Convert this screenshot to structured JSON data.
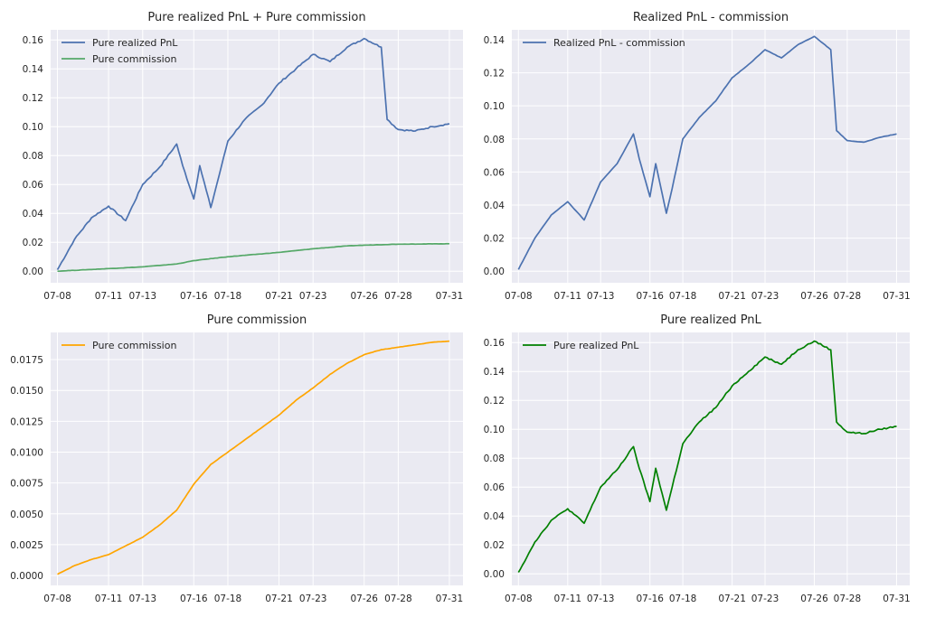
{
  "chart_data": [
    {
      "type": "line",
      "title": "Pure realized PnL + Pure commission",
      "xlabel": "",
      "ylabel": "",
      "xlim": [
        "07-08",
        "07-31"
      ],
      "ylim": [
        -0.008,
        0.167
      ],
      "x_ticks": [
        "07-08",
        "07-11",
        "07-13",
        "07-16",
        "07-18",
        "07-21",
        "07-23",
        "07-26",
        "07-28",
        "07-31"
      ],
      "y_ticks": [
        "0.00",
        "0.02",
        "0.04",
        "0.06",
        "0.08",
        "0.10",
        "0.12",
        "0.14",
        "0.16"
      ],
      "grid": true,
      "legend": "top-left",
      "series": [
        {
          "name": "Pure realized PnL",
          "color": "#4c72b0",
          "x": [
            "07-08",
            "07-09",
            "07-10",
            "07-11",
            "07-12",
            "07-13",
            "07-14",
            "07-15",
            "07-15",
            "07-16",
            "07-16",
            "07-17",
            "07-17",
            "07-18",
            "07-19",
            "07-20",
            "07-21",
            "07-22",
            "07-23",
            "07-24",
            "07-25",
            "07-26",
            "07-27",
            "07-27",
            "07-28",
            "07-29",
            "07-30",
            "07-31"
          ],
          "values": [
            0.001,
            0.022,
            0.037,
            0.045,
            0.035,
            0.06,
            0.072,
            0.088,
            0.073,
            0.05,
            0.073,
            0.044,
            0.06,
            0.09,
            0.105,
            0.115,
            0.13,
            0.14,
            0.15,
            0.145,
            0.155,
            0.161,
            0.155,
            0.105,
            0.098,
            0.097,
            0.1,
            0.102
          ]
        },
        {
          "name": "Pure commission",
          "color": "#55a868",
          "x": [
            "07-08",
            "07-11",
            "07-13",
            "07-15",
            "07-16",
            "07-18",
            "07-21",
            "07-23",
            "07-25",
            "07-26",
            "07-28",
            "07-31"
          ],
          "values": [
            0.0,
            0.0018,
            0.003,
            0.005,
            0.0073,
            0.01,
            0.013,
            0.0155,
            0.0175,
            0.018,
            0.0187,
            0.019
          ]
        }
      ]
    },
    {
      "type": "line",
      "title": "Realized PnL - commission",
      "xlabel": "",
      "ylabel": "",
      "xlim": [
        "07-08",
        "07-31"
      ],
      "ylim": [
        -0.007,
        0.146
      ],
      "x_ticks": [
        "07-08",
        "07-11",
        "07-13",
        "07-16",
        "07-18",
        "07-21",
        "07-23",
        "07-26",
        "07-28",
        "07-31"
      ],
      "y_ticks": [
        "0.00",
        "0.02",
        "0.04",
        "0.06",
        "0.08",
        "0.10",
        "0.12",
        "0.14"
      ],
      "grid": true,
      "legend": "top-left",
      "series": [
        {
          "name": "Realized PnL - commission",
          "color": "#4c72b0",
          "x": [
            "07-08",
            "07-09",
            "07-10",
            "07-11",
            "07-12",
            "07-13",
            "07-14",
            "07-15",
            "07-15",
            "07-16",
            "07-16",
            "07-17",
            "07-17",
            "07-18",
            "07-19",
            "07-20",
            "07-21",
            "07-22",
            "07-23",
            "07-24",
            "07-25",
            "07-26",
            "07-27",
            "07-27",
            "07-28",
            "07-29",
            "07-30",
            "07-31"
          ],
          "values": [
            0.001,
            0.02,
            0.034,
            0.042,
            0.031,
            0.054,
            0.065,
            0.083,
            0.068,
            0.045,
            0.065,
            0.035,
            0.05,
            0.08,
            0.093,
            0.103,
            0.117,
            0.125,
            0.134,
            0.129,
            0.137,
            0.142,
            0.134,
            0.085,
            0.079,
            0.078,
            0.081,
            0.083
          ]
        }
      ]
    },
    {
      "type": "line",
      "title": "Pure commission",
      "xlabel": "",
      "ylabel": "",
      "xlim": [
        "07-08",
        "07-31"
      ],
      "ylim": [
        -0.0008,
        0.0197
      ],
      "x_ticks": [
        "07-08",
        "07-11",
        "07-13",
        "07-16",
        "07-18",
        "07-21",
        "07-23",
        "07-26",
        "07-28",
        "07-31"
      ],
      "y_ticks": [
        "0.0000",
        "0.0025",
        "0.0050",
        "0.0075",
        "0.0100",
        "0.0125",
        "0.0150",
        "0.0175"
      ],
      "grid": true,
      "legend": "top-left",
      "series": [
        {
          "name": "Pure commission",
          "color": "#ffa500",
          "x": [
            "07-08",
            "07-09",
            "07-10",
            "07-11",
            "07-12",
            "07-13",
            "07-14",
            "07-15",
            "07-16",
            "07-17",
            "07-18",
            "07-19",
            "07-20",
            "07-21",
            "07-22",
            "07-23",
            "07-24",
            "07-25",
            "07-26",
            "07-27",
            "07-28",
            "07-29",
            "07-30",
            "07-31"
          ],
          "values": [
            0.0001,
            0.0008,
            0.0013,
            0.0017,
            0.0024,
            0.0031,
            0.0041,
            0.0053,
            0.0074,
            0.009,
            0.01,
            0.011,
            0.012,
            0.013,
            0.0142,
            0.0152,
            0.0163,
            0.0172,
            0.0179,
            0.0183,
            0.0185,
            0.0187,
            0.0189,
            0.019
          ]
        }
      ]
    },
    {
      "type": "line",
      "title": "Pure realized PnL",
      "xlabel": "",
      "ylabel": "",
      "xlim": [
        "07-08",
        "07-31"
      ],
      "ylim": [
        -0.008,
        0.167
      ],
      "x_ticks": [
        "07-08",
        "07-11",
        "07-13",
        "07-16",
        "07-18",
        "07-21",
        "07-23",
        "07-26",
        "07-28",
        "07-31"
      ],
      "y_ticks": [
        "0.00",
        "0.02",
        "0.04",
        "0.06",
        "0.08",
        "0.10",
        "0.12",
        "0.14",
        "0.16"
      ],
      "grid": true,
      "legend": "top-left",
      "series": [
        {
          "name": "Pure realized PnL",
          "color": "#008000",
          "x": [
            "07-08",
            "07-09",
            "07-10",
            "07-11",
            "07-12",
            "07-13",
            "07-14",
            "07-15",
            "07-15",
            "07-16",
            "07-16",
            "07-17",
            "07-17",
            "07-18",
            "07-19",
            "07-20",
            "07-21",
            "07-22",
            "07-23",
            "07-24",
            "07-25",
            "07-26",
            "07-27",
            "07-27",
            "07-28",
            "07-29",
            "07-30",
            "07-31"
          ],
          "values": [
            0.001,
            0.022,
            0.037,
            0.045,
            0.035,
            0.06,
            0.072,
            0.088,
            0.073,
            0.05,
            0.073,
            0.044,
            0.06,
            0.09,
            0.105,
            0.115,
            0.13,
            0.14,
            0.15,
            0.145,
            0.155,
            0.161,
            0.155,
            0.105,
            0.098,
            0.097,
            0.1,
            0.102
          ]
        }
      ]
    }
  ]
}
